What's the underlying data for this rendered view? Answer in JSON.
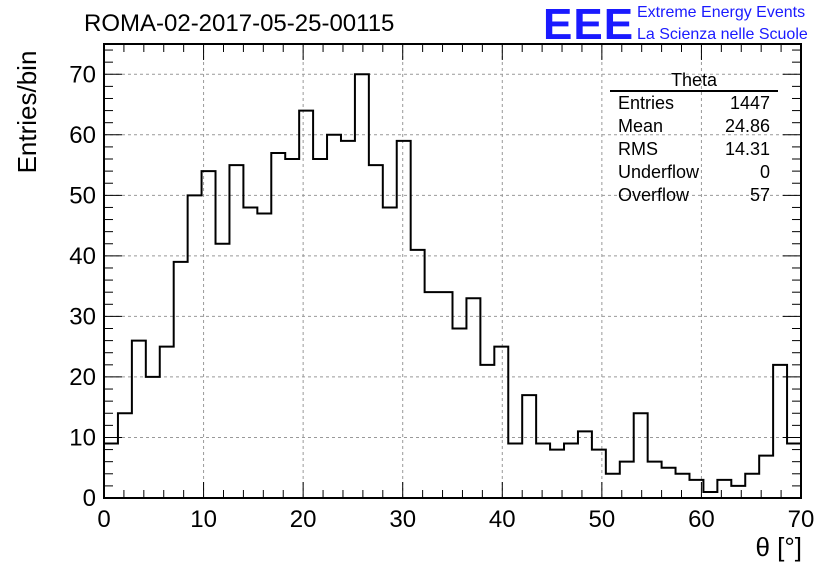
{
  "header": {
    "title": "ROMA-02-2017-05-25-00115"
  },
  "logo": {
    "mark": "EEE",
    "line1": "Extreme Energy Events",
    "line2": "La Scienza nelle Scuole"
  },
  "stats": {
    "title": "Theta",
    "rows": [
      {
        "label": "Entries",
        "value": "1447"
      },
      {
        "label": "Mean",
        "value": "24.86"
      },
      {
        "label": "RMS",
        "value": "14.31"
      },
      {
        "label": "Underflow",
        "value": "0"
      },
      {
        "label": "Overflow",
        "value": "57"
      }
    ]
  },
  "chart_data": {
    "type": "bar",
    "title": "ROMA-02-2017-05-25-00115",
    "xlabel": "θ [°]",
    "ylabel": "Entries/bin",
    "xlim": [
      0,
      70
    ],
    "ylim": [
      0,
      75
    ],
    "bin_width": 1.4,
    "grid": true,
    "x_ticks": [
      0,
      10,
      20,
      30,
      40,
      50,
      60,
      70
    ],
    "y_ticks": [
      0,
      10,
      20,
      30,
      40,
      50,
      60,
      70
    ],
    "values": [
      9,
      14,
      26,
      20,
      25,
      39,
      50,
      54,
      42,
      55,
      48,
      47,
      57,
      56,
      64,
      56,
      60,
      59,
      70,
      55,
      48,
      59,
      41,
      34,
      34,
      28,
      33,
      22,
      25,
      9,
      17,
      9,
      8,
      9,
      11,
      8,
      4,
      6,
      14,
      6,
      5,
      4,
      3,
      1,
      3,
      2,
      4,
      7,
      22,
      9
    ]
  }
}
